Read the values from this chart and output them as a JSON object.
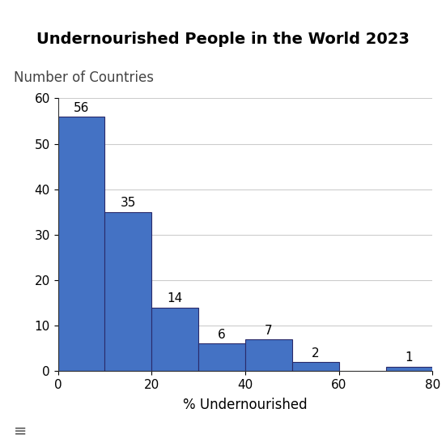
{
  "title": "Undernourished People in the World 2023",
  "ylabel": "Number of Countries",
  "xlabel": "% Undernourished",
  "bar_values": [
    56,
    35,
    14,
    6,
    7,
    2,
    0,
    1
  ],
  "bin_edges": [
    0,
    10,
    20,
    30,
    40,
    50,
    60,
    70,
    80
  ],
  "bar_color": "#4472C4",
  "bar_edgecolor": "#2a2a6a",
  "ylim": [
    0,
    60
  ],
  "yticks": [
    0,
    10,
    20,
    30,
    40,
    50,
    60
  ],
  "xticks": [
    0,
    20,
    40,
    60,
    80
  ],
  "title_fontsize": 14,
  "ylabel_fontsize": 12,
  "xlabel_fontsize": 12,
  "tick_fontsize": 11,
  "bar_label_fontsize": 11,
  "background_color": "#ffffff",
  "grid_color": "#cccccc"
}
